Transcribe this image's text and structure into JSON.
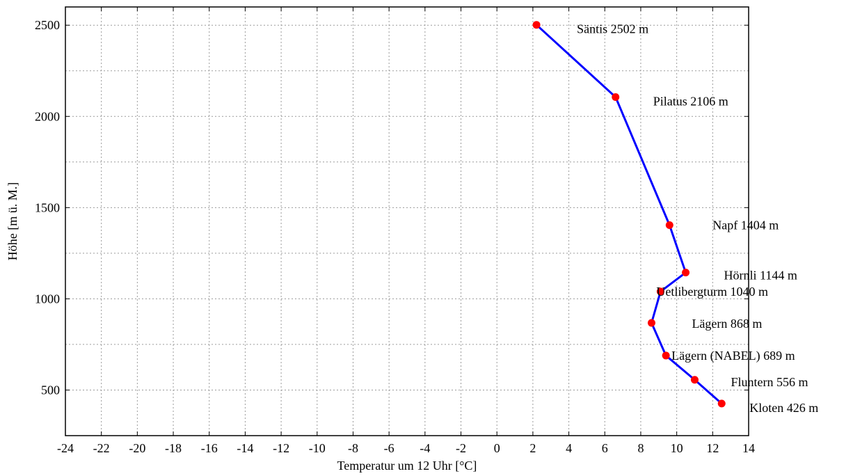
{
  "chart_data": {
    "type": "line",
    "xlabel": "Temperatur um 12 Uhr [°C]",
    "ylabel": "Höhe [m ü. M.]",
    "xlim": [
      -24,
      14
    ],
    "ylim": [
      250,
      2600
    ],
    "x_ticks": [
      -24,
      -22,
      -20,
      -18,
      -16,
      -14,
      -12,
      -10,
      -8,
      -6,
      -4,
      -2,
      0,
      2,
      4,
      6,
      8,
      10,
      12,
      14
    ],
    "y_ticks": [
      500,
      1000,
      1500,
      2000,
      2500
    ],
    "y_minor_grid": [
      750,
      1250,
      1750,
      2250
    ],
    "grid": true,
    "line_color": "#0000ff",
    "marker_color": "#ff0000",
    "points": [
      {
        "label": "Säntis 2502 m",
        "x": 2.2,
        "y": 2502
      },
      {
        "label": "Pilatus 2106 m",
        "x": 6.6,
        "y": 2106
      },
      {
        "label": "Napf 1404 m",
        "x": 9.6,
        "y": 1404
      },
      {
        "label": "Hörnli 1144 m",
        "x": 10.5,
        "y": 1144
      },
      {
        "label": "Uetlibergturm 1040 m",
        "x": 9.1,
        "y": 1040
      },
      {
        "label": "Lägern 868 m",
        "x": 8.6,
        "y": 868
      },
      {
        "label": "Lägern (NABEL) 689 m",
        "x": 9.4,
        "y": 689
      },
      {
        "label": "Fluntern 556 m",
        "x": 11.0,
        "y": 556
      },
      {
        "label": "Kloten 426 m",
        "x": 12.5,
        "y": 426
      }
    ]
  }
}
